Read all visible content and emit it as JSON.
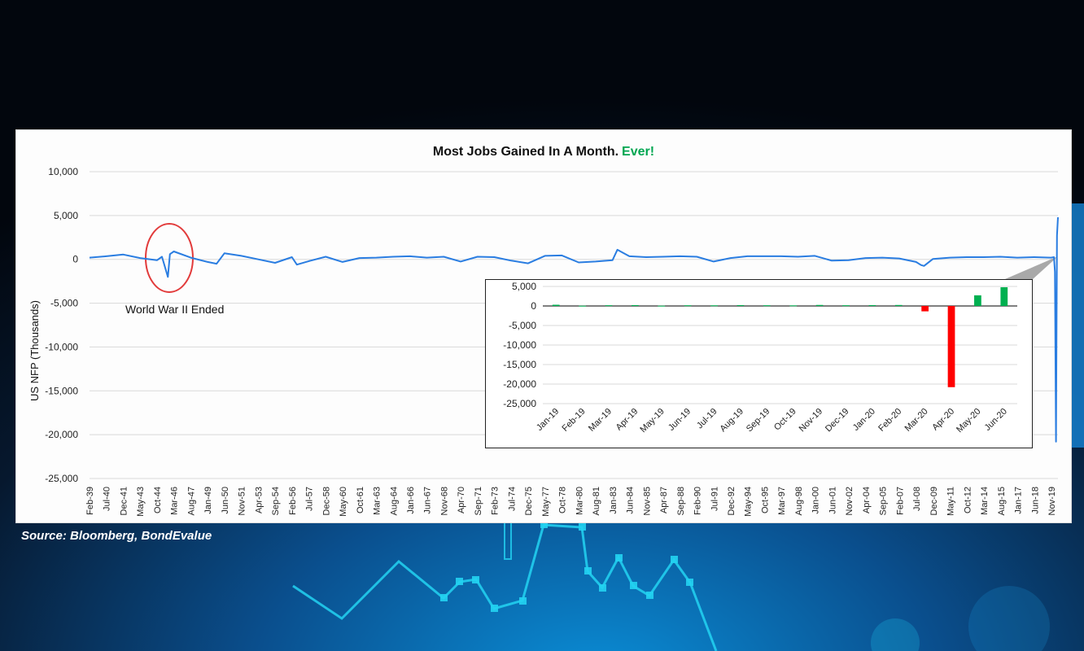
{
  "source_note": "Source: Bloomberg, BondEvalue",
  "colors": {
    "line": "#2a7de1",
    "positive_bar": "#00b050",
    "negative_bar": "#ff0000",
    "title_accent": "#00a651",
    "annotation_circle": "#e23b3b"
  },
  "annotation": {
    "text": "World War II Ended"
  },
  "chart_data": [
    {
      "type": "line",
      "title": "Most Jobs Gained In A Month.",
      "title_accent": "Ever!",
      "ylabel": "US NFP (Thousands)",
      "xlabel": "",
      "ylim": [
        -25000,
        10000
      ],
      "yticks": [
        10000,
        5000,
        0,
        -5000,
        -10000,
        -15000,
        -20000,
        -25000
      ],
      "ytick_labels": [
        "10,000",
        "5,000",
        "0",
        "-5,000",
        "-10,000",
        "-15,000",
        "-20,000",
        "-25,000"
      ],
      "grid": true,
      "x_tick_labels": [
        "Feb-39",
        "Jul-40",
        "Dec-41",
        "May-43",
        "Oct-44",
        "Mar-46",
        "Aug-47",
        "Jan-49",
        "Jun-50",
        "Nov-51",
        "Apr-53",
        "Sep-54",
        "Feb-56",
        "Jul-57",
        "Dec-58",
        "May-60",
        "Oct-61",
        "Mar-63",
        "Aug-64",
        "Jan-66",
        "Jun-67",
        "Nov-68",
        "Apr-70",
        "Sep-71",
        "Feb-73",
        "Jul-74",
        "Dec-75",
        "May-77",
        "Oct-78",
        "Mar-80",
        "Aug-81",
        "Jan-83",
        "Jun-84",
        "Nov-85",
        "Apr-87",
        "Sep-88",
        "Feb-90",
        "Jul-91",
        "Dec-92",
        "May-94",
        "Oct-95",
        "Mar-97",
        "Aug-98",
        "Jan-00",
        "Jun-01",
        "Nov-02",
        "Apr-04",
        "Sep-05",
        "Feb-07",
        "Jul-08",
        "Dec-09",
        "May-11",
        "Oct-12",
        "Mar-14",
        "Aug-15",
        "Jan-17",
        "Jun-18",
        "Nov-19"
      ],
      "series": [
        {
          "x": [
            "Feb-39",
            "Jul-40",
            "Dec-41",
            "May-43",
            "Oct-44",
            "Mar-45",
            "Sep-45",
            "Nov-45",
            "Mar-46",
            "Aug-47",
            "Jan-49",
            "Oct-49",
            "Jun-50",
            "Nov-51",
            "Apr-53",
            "Sep-54",
            "Feb-56",
            "Jul-56",
            "Jul-57",
            "Dec-58",
            "May-60",
            "Oct-61",
            "Mar-63",
            "Aug-64",
            "Jan-66",
            "Jun-67",
            "Nov-68",
            "Apr-70",
            "Sep-71",
            "Feb-73",
            "Jul-74",
            "Dec-75",
            "May-77",
            "Oct-78",
            "Mar-80",
            "Aug-81",
            "Jan-83",
            "Jun-83",
            "Jun-84",
            "Nov-85",
            "Apr-87",
            "Sep-88",
            "Feb-90",
            "Jul-91",
            "Dec-92",
            "May-94",
            "Oct-95",
            "Mar-97",
            "Aug-98",
            "Jan-00",
            "Jun-01",
            "Nov-02",
            "Apr-04",
            "Sep-05",
            "Feb-07",
            "Jul-08",
            "Dec-08",
            "Mar-09",
            "Dec-09",
            "May-11",
            "Oct-12",
            "Mar-14",
            "Aug-15",
            "Jan-17",
            "Jun-18",
            "Nov-19",
            "Feb-20",
            "Mar-20",
            "Apr-20",
            "May-20",
            "Jun-20"
          ],
          "values": [
            200,
            350,
            550,
            150,
            -100,
            300,
            -2000,
            600,
            900,
            200,
            -300,
            -500,
            700,
            400,
            0,
            -400,
            250,
            -600,
            -200,
            300,
            -300,
            150,
            200,
            300,
            350,
            200,
            300,
            -250,
            300,
            250,
            -150,
            -450,
            400,
            450,
            -350,
            -250,
            -100,
            1100,
            350,
            250,
            300,
            350,
            300,
            -250,
            150,
            350,
            350,
            350,
            300,
            400,
            -150,
            -100,
            150,
            200,
            100,
            -300,
            -650,
            -750,
            50,
            200,
            250,
            250,
            300,
            200,
            250,
            200,
            250,
            -1400,
            -20800,
            2700,
            4800
          ]
        }
      ]
    },
    {
      "type": "bar",
      "title": "",
      "ylim": [
        -25000,
        5000
      ],
      "yticks": [
        5000,
        0,
        -5000,
        -10000,
        -15000,
        -20000,
        -25000
      ],
      "ytick_labels": [
        "5,000",
        "0",
        "-5,000",
        "-10,000",
        "-15,000",
        "-20,000",
        "-25,000"
      ],
      "grid": true,
      "categories": [
        "Jan-19",
        "Feb-19",
        "Mar-19",
        "Apr-19",
        "May-19",
        "Jun-19",
        "Jul-19",
        "Aug-19",
        "Sep-19",
        "Oct-19",
        "Nov-19",
        "Dec-19",
        "Jan-20",
        "Feb-20",
        "Mar-20",
        "Apr-20",
        "May-20",
        "Jun-20"
      ],
      "values": [
        312,
        56,
        189,
        216,
        62,
        178,
        166,
        219,
        180,
        152,
        261,
        184,
        214,
        251,
        -1373,
        -20787,
        2725,
        4800
      ]
    }
  ]
}
